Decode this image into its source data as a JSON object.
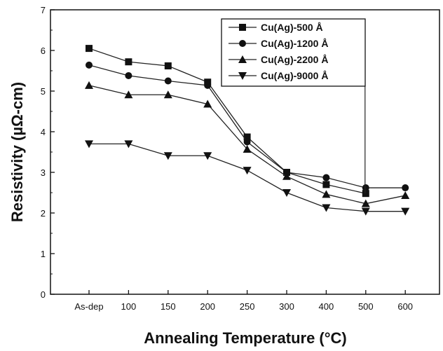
{
  "chart_data": {
    "type": "line",
    "categories": [
      "As-dep",
      "100",
      "150",
      "200",
      "250",
      "300",
      "400",
      "500",
      "600"
    ],
    "xlabel": "Annealing Temperature (°C)",
    "ylabel": "Resistivity (µΩ-cm)",
    "ylim": [
      0,
      7
    ],
    "yticks": [
      0,
      1,
      2,
      3,
      4,
      5,
      6,
      7
    ],
    "grid": false,
    "legend_position": "top-right",
    "series": [
      {
        "name": "Cu(Ag)-500 Å",
        "marker": "square",
        "values": [
          6.05,
          5.72,
          5.62,
          5.22,
          3.87,
          3.0,
          2.7,
          2.48,
          null
        ]
      },
      {
        "name": "Cu(Ag)-1200 Å",
        "marker": "circle",
        "values": [
          5.64,
          5.38,
          5.25,
          5.14,
          3.75,
          3.0,
          2.87,
          2.62,
          2.62
        ]
      },
      {
        "name": "Cu(Ag)-2200 Å",
        "marker": "triangle-up",
        "values": [
          5.14,
          4.91,
          4.91,
          4.68,
          3.57,
          2.9,
          2.46,
          2.23,
          2.43
        ]
      },
      {
        "name": "Cu(Ag)-9000 Å",
        "marker": "triangle-down",
        "values": [
          3.7,
          3.7,
          3.41,
          3.41,
          3.05,
          2.5,
          2.13,
          2.04,
          2.04
        ]
      }
    ]
  }
}
